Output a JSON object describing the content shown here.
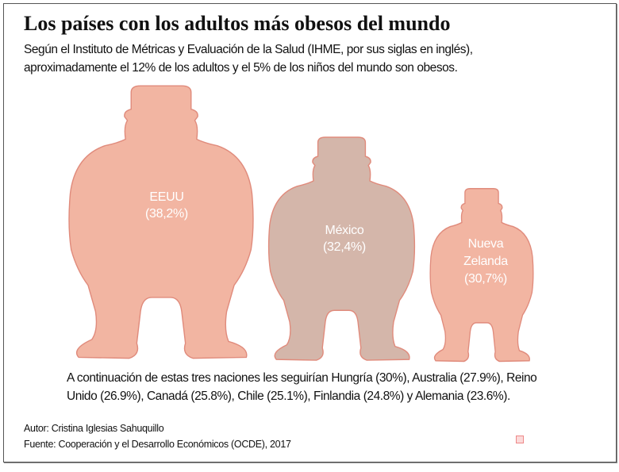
{
  "title": "Los países con los adultos más obesos del mundo",
  "subtitle_lines": [
    "Según el Instituto de Métricas y Evaluación de la Salud (IHME, por sus siglas en inglés),",
    "aproximadamente el 12% de los adultos y el 5% de los niños del mundo son obesos."
  ],
  "chart_data": {
    "type": "pictogram",
    "title": "Los países con los adultos más obesos del mundo",
    "categories": [
      "EEUU",
      "México",
      "Nueva Zelanda"
    ],
    "values": [
      38.2,
      32.4,
      30.7
    ],
    "unit": "%",
    "labels": [
      {
        "name_lines": [
          "EEUU"
        ],
        "value_label": "(38,2%)"
      },
      {
        "name_lines": [
          "México"
        ],
        "value_label": "(32,4%)"
      },
      {
        "name_lines": [
          "Nueva",
          "Zelanda"
        ],
        "value_label": "(30,7%)"
      }
    ],
    "colors": [
      "#f2b5a2",
      "#d4b6aa",
      "#f2b5a2"
    ],
    "stroke_color": "#e08b7c"
  },
  "footnote_lines": [
    "A continuación de estas tres naciones les seguirían Hungría (30%), Australia (27.9%), Reino",
    "Unido (26.9%), Canadá (25.8%), Chile (25.1%), Finlandia (24.8%) y Alemania (23.6%)."
  ],
  "author": "Autor: Cristina Iglesias Sahuquillo",
  "source": "Fuente:  Cooperación y el Desarrollo Económicos (OCDE), 2017"
}
